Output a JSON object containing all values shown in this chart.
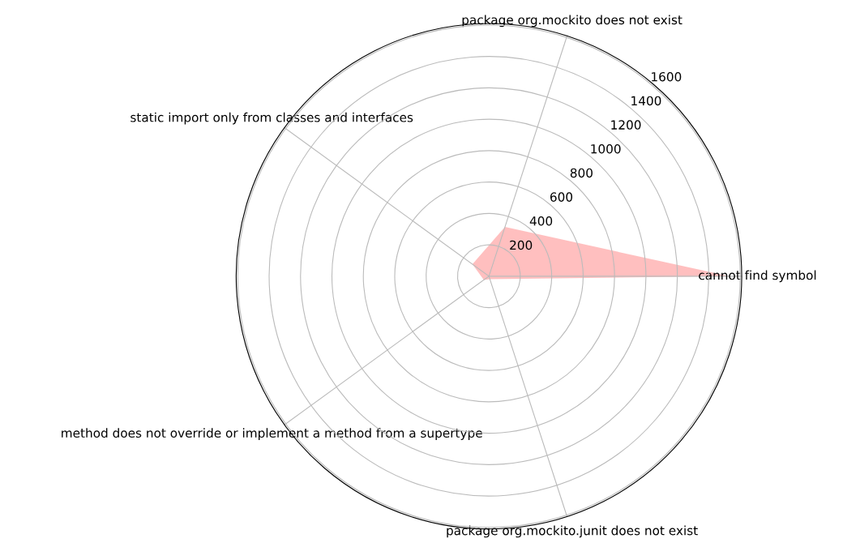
{
  "chart_data": {
    "type": "radar",
    "categories": [
      "package org.mockito does not exist",
      "cannot find symbol",
      "package org.mockito.junit does not exist",
      "method does not override or implement a method from a supertype",
      "static import only from classes and interfaces"
    ],
    "series": [
      {
        "color": "#ff0000",
        "values": [
          330,
          1530,
          20,
          40,
          130
        ]
      }
    ],
    "ylim": [
      0,
      1610
    ],
    "yticks": [
      200,
      400,
      600,
      800,
      1000,
      1200,
      1400,
      1600
    ],
    "grid": true
  }
}
